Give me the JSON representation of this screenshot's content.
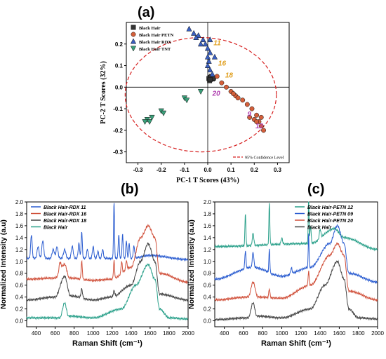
{
  "figure": {
    "panel_a_label": "(a)",
    "panel_b_label": "(b)",
    "panel_c_label": "(c)"
  },
  "chart_data": [
    {
      "id": "a",
      "type": "scatter",
      "title": "",
      "xlabel": "PC-1 T Scores (43%)",
      "ylabel": "PC-2 T Scores (32%)",
      "xlim": [
        -0.35,
        0.35
      ],
      "ylim": [
        -0.35,
        0.3
      ],
      "xticks": [
        -0.3,
        -0.2,
        -0.1,
        0.0,
        0.1,
        0.2,
        0.3
      ],
      "xtick_labels": [
        "-0.3",
        "-0.2",
        "-0.1",
        "0.0",
        "0.1",
        "0.2",
        "0.3"
      ],
      "yticks": [
        -0.3,
        -0.2,
        -0.1,
        0.0,
        0.1,
        0.2
      ],
      "ytick_labels": [
        "-0.3",
        "-0.2",
        "-0.1",
        "0.0",
        "0.1",
        "0.2"
      ],
      "legend": "top-left",
      "confidence_ellipse": {
        "label": "95% Confidence Level",
        "color": "#d62020",
        "cx": -0.03,
        "cy": -0.035,
        "rx": 0.325,
        "ry": 0.265
      },
      "series": [
        {
          "name": "Black Hair",
          "marker": "square",
          "color": "#333333",
          "points": [
            [
              0.005,
              0.04
            ],
            [
              0.012,
              0.045
            ],
            [
              0.02,
              0.038
            ],
            [
              0.008,
              0.03
            ],
            [
              0.015,
              0.05
            ],
            [
              0.025,
              0.042
            ],
            [
              0.01,
              0.035
            ]
          ]
        },
        {
          "name": "Black Hair PETN",
          "marker": "circle",
          "color": "#d45f3a",
          "points": [
            [
              0.04,
              0.05
            ],
            [
              0.06,
              0.02
            ],
            [
              0.08,
              0.0
            ],
            [
              0.1,
              -0.02
            ],
            [
              0.12,
              -0.04
            ],
            [
              0.13,
              -0.05
            ],
            [
              0.15,
              -0.06
            ],
            [
              0.17,
              -0.08
            ],
            [
              0.19,
              -0.1
            ],
            [
              0.21,
              -0.13
            ],
            [
              0.22,
              -0.16
            ],
            [
              0.23,
              -0.18
            ],
            [
              0.24,
              -0.2
            ],
            [
              0.2,
              -0.15
            ],
            [
              0.18,
              -0.14
            ],
            [
              0.11,
              -0.03
            ],
            [
              0.23,
              -0.14
            ],
            [
              0.21,
              -0.16
            ]
          ]
        },
        {
          "name": "Black Hair RDX",
          "marker": "triangle-up",
          "color": "#3a5fc0",
          "points": [
            [
              -0.08,
              0.27
            ],
            [
              -0.06,
              0.25
            ],
            [
              -0.04,
              0.24
            ],
            [
              -0.02,
              0.22
            ],
            [
              -0.01,
              0.2
            ],
            [
              0.0,
              0.18
            ],
            [
              0.01,
              0.16
            ],
            [
              0.0,
              0.14
            ],
            [
              0.005,
              0.12
            ],
            [
              0.0,
              0.1
            ],
            [
              0.01,
              0.08
            ],
            [
              0.02,
              0.06
            ],
            [
              -0.05,
              0.23
            ],
            [
              0.03,
              0.14
            ],
            [
              0.01,
              0.22
            ],
            [
              -0.03,
              0.2
            ]
          ]
        },
        {
          "name": "Black Hair TNT",
          "marker": "triangle-down",
          "color": "#3aa07a",
          "points": [
            [
              -0.26,
              -0.15
            ],
            [
              -0.25,
              -0.16
            ],
            [
              -0.24,
              -0.14
            ],
            [
              -0.2,
              -0.11
            ],
            [
              -0.19,
              -0.12
            ],
            [
              -0.27,
              -0.16
            ],
            [
              -0.1,
              -0.05
            ],
            [
              -0.09,
              -0.06
            ],
            [
              -0.03,
              -0.02
            ]
          ]
        }
      ],
      "annotations": [
        {
          "text": "11",
          "x": 0.025,
          "y": 0.195,
          "color": "#e0a020"
        },
        {
          "text": "16",
          "x": 0.045,
          "y": 0.1,
          "color": "#e0a020"
        },
        {
          "text": "18",
          "x": 0.075,
          "y": 0.045,
          "color": "#e0a020"
        },
        {
          "text": "20",
          "x": 0.02,
          "y": -0.04,
          "color": "#b040b0"
        },
        {
          "text": "9",
          "x": 0.17,
          "y": -0.135,
          "color": "#b040b0"
        },
        {
          "text": "12",
          "x": 0.205,
          "y": -0.19,
          "color": "#b040b0"
        }
      ]
    },
    {
      "id": "b",
      "type": "line",
      "xlabel": "Raman Shift (cm⁻¹)",
      "ylabel": "Normalized Intensity (a.u)",
      "xlim": [
        300,
        2000
      ],
      "ylim": [
        -0.1,
        2.0
      ],
      "xticks": [
        400,
        600,
        800,
        1000,
        1200,
        1400,
        1600,
        1800,
        2000
      ],
      "yticks": [
        0.0,
        0.2,
        0.4,
        0.6,
        0.8,
        1.0,
        1.2,
        1.4,
        1.6,
        1.8,
        2.0
      ],
      "ytick_labels": [
        "0.0",
        "0.2",
        "0.4",
        "0.6",
        "0.8",
        "1.0",
        "1.2",
        "1.4",
        "1.6",
        "1.8",
        "2.0"
      ],
      "legend": "top-left",
      "series": [
        {
          "name": "Black Hair-RDX 11",
          "color": "#2a5cd0",
          "offset": 1.0,
          "base": [
            [
              300,
              0.05
            ],
            [
              1400,
              0.05
            ],
            [
              1600,
              0.1
            ],
            [
              2000,
              0.03
            ]
          ],
          "peaks": [
            [
              350,
              0.4,
              8
            ],
            [
              420,
              0.2,
              10
            ],
            [
              470,
              0.3,
              10
            ],
            [
              580,
              0.15,
              12
            ],
            [
              620,
              0.2,
              10
            ],
            [
              700,
              0.15,
              12
            ],
            [
              780,
              0.2,
              10
            ],
            [
              850,
              0.25,
              8
            ],
            [
              880,
              0.45,
              6
            ],
            [
              940,
              0.15,
              8
            ],
            [
              1000,
              0.2,
              8
            ],
            [
              1050,
              0.12,
              8
            ],
            [
              1100,
              0.15,
              8
            ],
            [
              1220,
              0.95,
              5
            ],
            [
              1270,
              0.4,
              6
            ],
            [
              1310,
              0.4,
              6
            ],
            [
              1350,
              0.3,
              6
            ],
            [
              1380,
              0.25,
              6
            ],
            [
              1430,
              0.2,
              8
            ]
          ]
        },
        {
          "name": "Black Hair-RDX 16",
          "color": "#d0503a",
          "offset": 0.6,
          "base": [
            [
              300,
              0.1
            ],
            [
              600,
              0.12
            ],
            [
              700,
              0.35
            ],
            [
              750,
              0.12
            ],
            [
              1000,
              0.08
            ],
            [
              1200,
              0.1
            ],
            [
              1400,
              0.3
            ],
            [
              1500,
              0.8
            ],
            [
              1580,
              1.0
            ],
            [
              1650,
              0.8
            ],
            [
              1700,
              0.2
            ],
            [
              2000,
              0.05
            ]
          ],
          "peaks": [
            [
              650,
              0.15,
              10
            ],
            [
              880,
              0.3,
              6
            ],
            [
              1220,
              0.3,
              6
            ],
            [
              1300,
              0.2,
              6
            ],
            [
              1350,
              0.15,
              6
            ]
          ]
        },
        {
          "name": "Black Hair-RDX 18",
          "color": "#444444",
          "offset": 0.3,
          "base": [
            [
              300,
              0.05
            ],
            [
              600,
              0.1
            ],
            [
              700,
              0.45
            ],
            [
              760,
              0.12
            ],
            [
              1000,
              0.05
            ],
            [
              1200,
              0.1
            ],
            [
              1400,
              0.3
            ],
            [
              1500,
              0.7
            ],
            [
              1580,
              1.0
            ],
            [
              1650,
              0.7
            ],
            [
              1700,
              0.15
            ],
            [
              2000,
              0.05
            ]
          ],
          "peaks": [
            [
              880,
              0.15,
              8
            ],
            [
              1220,
              0.1,
              8
            ]
          ]
        },
        {
          "name": "Black Hair",
          "color": "#2aa08a",
          "offset": 0.0,
          "base": [
            [
              300,
              0.05
            ],
            [
              650,
              0.05
            ],
            [
              700,
              0.3
            ],
            [
              740,
              0.08
            ],
            [
              1000,
              0.05
            ],
            [
              1300,
              0.2
            ],
            [
              1450,
              0.6
            ],
            [
              1580,
              0.95
            ],
            [
              1650,
              0.7
            ],
            [
              1700,
              0.2
            ],
            [
              1800,
              0.05
            ],
            [
              2000,
              0.03
            ]
          ],
          "peaks": []
        }
      ]
    },
    {
      "id": "c",
      "type": "line",
      "xlabel": "Raman Shift (cm⁻¹)",
      "ylabel": "Normalized Intensity (a.u)",
      "xlim": [
        300,
        2000
      ],
      "ylim": [
        -0.1,
        2.0
      ],
      "xticks": [
        400,
        600,
        800,
        1000,
        1200,
        1400,
        1600,
        1800,
        2000
      ],
      "yticks": [
        0.0,
        0.2,
        0.4,
        0.6,
        0.8,
        1.0,
        1.2,
        1.4,
        1.6,
        1.8,
        2.0
      ],
      "ytick_labels": [
        "0.0",
        "0.2",
        "0.4",
        "0.6",
        "0.8",
        "1.0",
        "1.2",
        "1.4",
        "1.6",
        "1.8",
        "2.0"
      ],
      "legend": "top-right",
      "series": [
        {
          "name": "Black Hair-PETN 12",
          "color": "#2aa08a",
          "offset": 1.2,
          "base": [
            [
              300,
              0.05
            ],
            [
              1300,
              0.1
            ],
            [
              1550,
              0.35
            ],
            [
              1650,
              0.2
            ],
            [
              2000,
              0.0
            ]
          ],
          "peaks": [
            [
              620,
              0.55,
              5
            ],
            [
              700,
              0.2,
              8
            ],
            [
              870,
              0.7,
              5
            ],
            [
              1000,
              0.1,
              8
            ],
            [
              1280,
              0.8,
              4
            ],
            [
              1300,
              0.3,
              6
            ],
            [
              1400,
              0.15,
              8
            ]
          ]
        },
        {
          "name": "Black Hair-PETN 09",
          "color": "#2a5cd0",
          "offset": 0.6,
          "base": [
            [
              300,
              0.1
            ],
            [
              700,
              0.3
            ],
            [
              1000,
              0.15
            ],
            [
              1300,
              0.3
            ],
            [
              1500,
              0.7
            ],
            [
              1580,
              1.0
            ],
            [
              1650,
              0.7
            ],
            [
              1700,
              0.2
            ],
            [
              2000,
              0.05
            ]
          ],
          "peaks": [
            [
              620,
              0.3,
              6
            ],
            [
              700,
              0.25,
              8
            ],
            [
              870,
              0.4,
              5
            ],
            [
              1280,
              0.6,
              4
            ],
            [
              1100,
              0.1,
              8
            ]
          ]
        },
        {
          "name": "Black Hair-PETN 20",
          "color": "#d0503a",
          "offset": 0.3,
          "base": [
            [
              300,
              0.05
            ],
            [
              650,
              0.1
            ],
            [
              700,
              0.35
            ],
            [
              750,
              0.1
            ],
            [
              1000,
              0.08
            ],
            [
              1300,
              0.3
            ],
            [
              1500,
              0.8
            ],
            [
              1580,
              1.0
            ],
            [
              1650,
              0.8
            ],
            [
              1700,
              0.2
            ],
            [
              2000,
              0.05
            ]
          ],
          "peaks": [
            [
              870,
              0.15,
              6
            ],
            [
              1280,
              0.25,
              5
            ]
          ]
        },
        {
          "name": "Black Hair",
          "color": "#444444",
          "offset": 0.0,
          "base": [
            [
              300,
              0.02
            ],
            [
              650,
              0.05
            ],
            [
              700,
              0.3
            ],
            [
              740,
              0.08
            ],
            [
              1000,
              0.05
            ],
            [
              1300,
              0.2
            ],
            [
              1450,
              0.6
            ],
            [
              1580,
              1.0
            ],
            [
              1650,
              0.7
            ],
            [
              1700,
              0.2
            ],
            [
              1800,
              0.05
            ],
            [
              2000,
              0.03
            ]
          ],
          "peaks": []
        }
      ]
    }
  ]
}
